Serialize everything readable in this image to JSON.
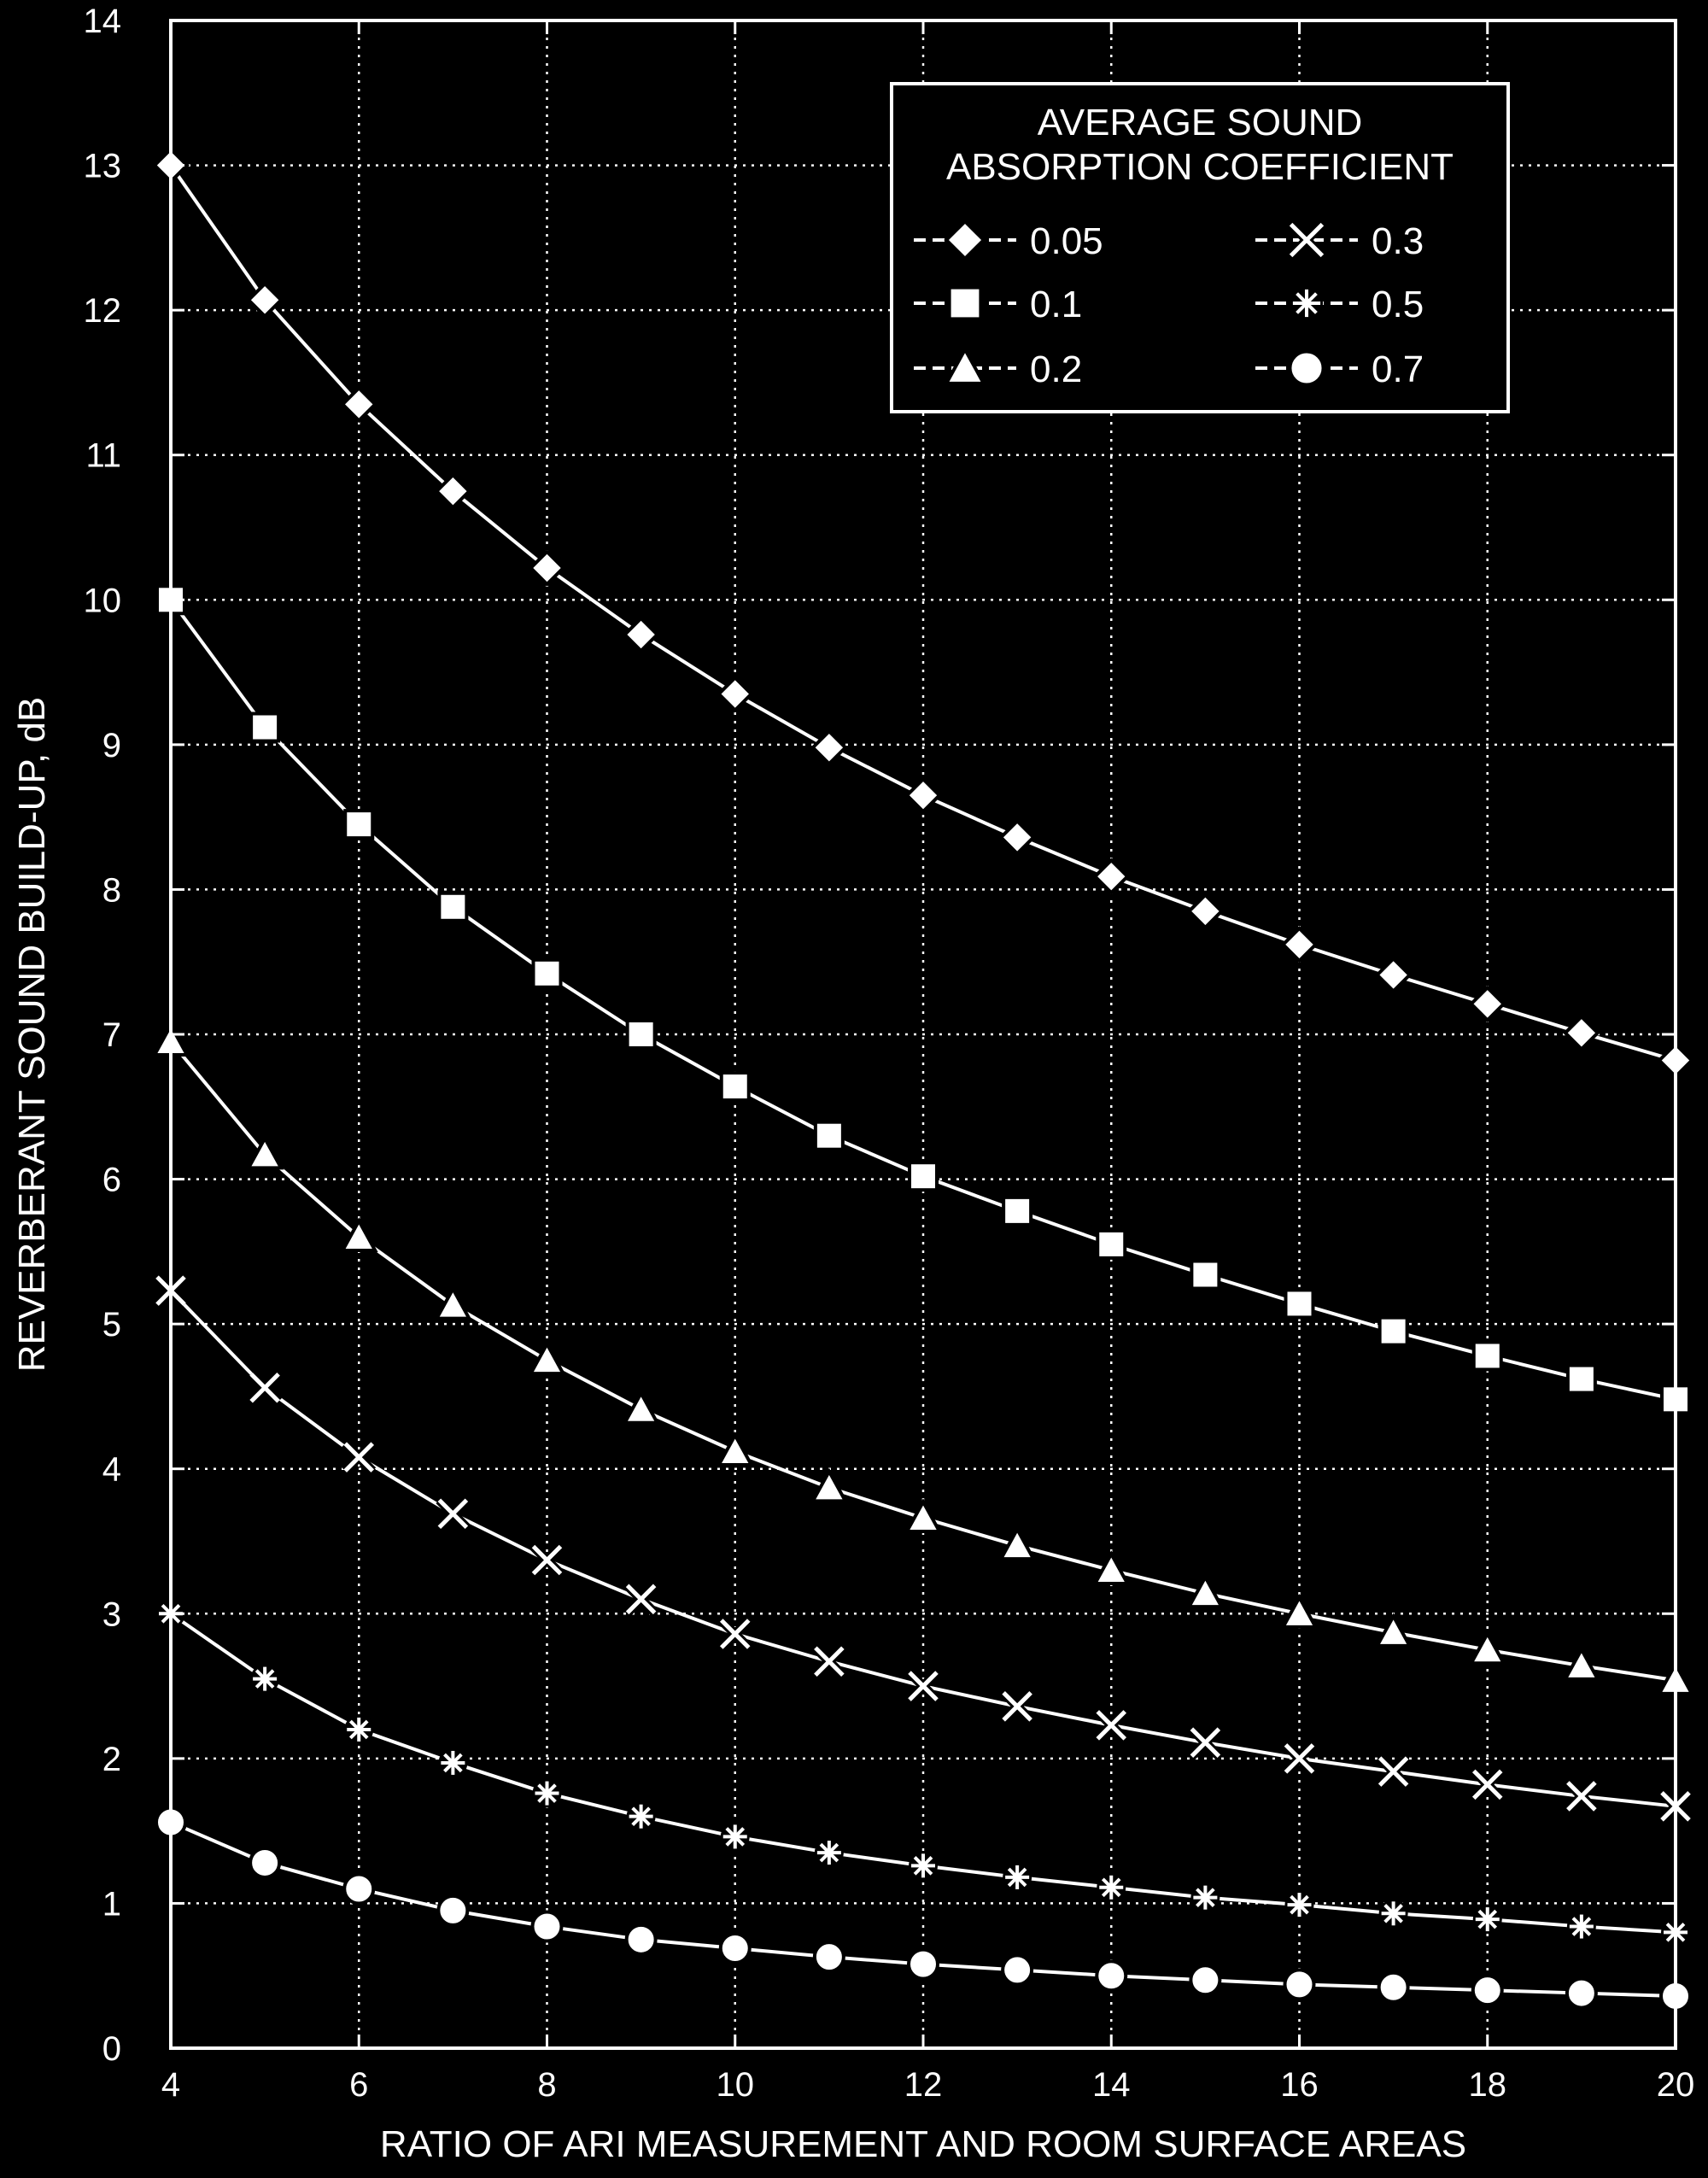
{
  "colors": {
    "background": "#000000",
    "foreground": "#ffffff"
  },
  "chart_data": {
    "type": "line",
    "title": "",
    "xlabel": "RATIO OF ARI MEASUREMENT AND ROOM SURFACE AREAS",
    "ylabel": "REVERBERANT SOUND BUILD-UP, dB",
    "xlim": [
      4,
      20
    ],
    "ylim": [
      0,
      14
    ],
    "grid": true,
    "grid_style": "dotted",
    "legend_position": "top-right",
    "legend_title": [
      "AVERAGE SOUND",
      "ABSORPTION COEFFICIENT"
    ],
    "xticks": [
      4,
      6,
      8,
      10,
      12,
      14,
      16,
      18,
      20
    ],
    "yticks": [
      0,
      1,
      2,
      3,
      4,
      5,
      6,
      7,
      8,
      9,
      10,
      11,
      12,
      13,
      14
    ],
    "x": [
      4,
      5,
      6,
      7,
      8,
      9,
      10,
      11,
      12,
      13,
      14,
      15,
      16,
      17,
      18,
      19,
      20
    ],
    "series": [
      {
        "name": "0.05",
        "marker": "diamond",
        "values": [
          13.0,
          12.07,
          11.35,
          10.75,
          10.22,
          9.76,
          9.35,
          8.98,
          8.65,
          8.36,
          8.09,
          7.85,
          7.62,
          7.41,
          7.21,
          7.01,
          6.82
        ]
      },
      {
        "name": "0.1",
        "marker": "square",
        "values": [
          10.0,
          9.12,
          8.45,
          7.88,
          7.42,
          7.0,
          6.64,
          6.3,
          6.02,
          5.78,
          5.55,
          5.34,
          5.14,
          4.95,
          4.78,
          4.62,
          4.48
        ]
      },
      {
        "name": "0.2",
        "marker": "triangle",
        "values": [
          6.95,
          6.17,
          5.6,
          5.13,
          4.75,
          4.41,
          4.12,
          3.87,
          3.66,
          3.47,
          3.3,
          3.14,
          3.0,
          2.87,
          2.75,
          2.64,
          2.54
        ]
      },
      {
        "name": "0.3",
        "marker": "x",
        "values": [
          5.23,
          4.56,
          4.08,
          3.69,
          3.37,
          3.1,
          2.86,
          2.67,
          2.5,
          2.36,
          2.23,
          2.11,
          2.0,
          1.91,
          1.82,
          1.74,
          1.67
        ]
      },
      {
        "name": "0.5",
        "marker": "asterisk",
        "values": [
          3.0,
          2.55,
          2.2,
          1.97,
          1.76,
          1.6,
          1.46,
          1.35,
          1.26,
          1.18,
          1.11,
          1.04,
          0.99,
          0.93,
          0.89,
          0.84,
          0.8
        ]
      },
      {
        "name": "0.7",
        "marker": "circle",
        "values": [
          1.56,
          1.28,
          1.1,
          0.95,
          0.84,
          0.75,
          0.69,
          0.63,
          0.58,
          0.54,
          0.5,
          0.47,
          0.44,
          0.42,
          0.4,
          0.38,
          0.36
        ]
      }
    ]
  }
}
